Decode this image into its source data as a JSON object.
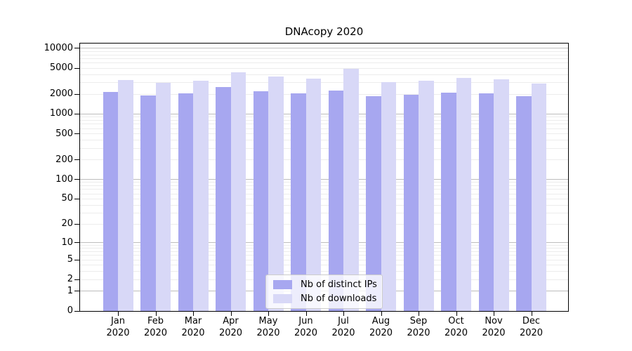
{
  "title": "DNAcopy 2020",
  "chart_data": {
    "type": "bar",
    "title": "DNAcopy 2020",
    "categories": [
      "Jan 2020",
      "Feb 2020",
      "Mar 2020",
      "Apr 2020",
      "May 2020",
      "Jun 2020",
      "Jul 2020",
      "Aug 2020",
      "Sep 2020",
      "Oct 2020",
      "Nov 2020",
      "Dec 2020"
    ],
    "months": [
      "Jan",
      "Feb",
      "Mar",
      "Apr",
      "May",
      "Jun",
      "Jul",
      "Aug",
      "Sep",
      "Oct",
      "Nov",
      "Dec"
    ],
    "year": "2020",
    "series": [
      {
        "name": "Nb of distinct IPs",
        "color": "#a7a7f0",
        "values": [
          2150,
          1900,
          2080,
          2600,
          2250,
          2050,
          2300,
          1850,
          1950,
          2100,
          2050,
          1850
        ]
      },
      {
        "name": "Nb of downloads",
        "color": "#d8d8f7",
        "values": [
          3300,
          3000,
          3250,
          4350,
          3700,
          3450,
          4900,
          3050,
          3250,
          3550,
          3400,
          2900
        ]
      }
    ],
    "xlabel": "",
    "ylabel": "",
    "y_scale": "log1p",
    "ylim": [
      0,
      10000
    ],
    "y_ticks": [
      0,
      1,
      2,
      5,
      10,
      20,
      50,
      100,
      200,
      500,
      1000,
      2000,
      5000,
      10000
    ],
    "grid": "horizontal minor+major",
    "legend_position": "lower center"
  },
  "colors": {
    "distinct_ips": "#a7a7f0",
    "downloads": "#d8d8f7",
    "grid_major": "#bdbdbd",
    "grid_minor": "#ececec",
    "axis": "#000000",
    "legend_border": "#cccccc"
  }
}
